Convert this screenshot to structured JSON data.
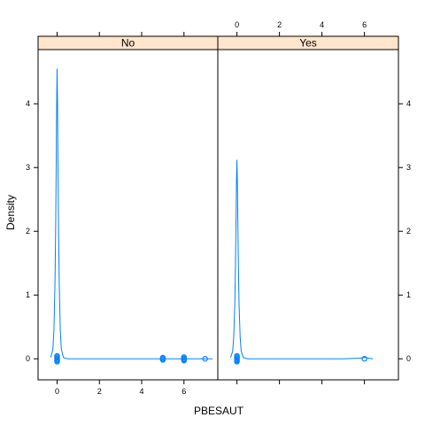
{
  "chart_data": {
    "type": "line",
    "plot_style": "lattice density plot with rug points",
    "xlabel": "PBESAUT",
    "ylabel": "Density",
    "x_ticks": [
      0,
      2,
      4,
      6
    ],
    "y_ticks": [
      0,
      1,
      2,
      3,
      4
    ],
    "xlim": [
      -0.9,
      7.6
    ],
    "ylim": [
      -0.33,
      4.85
    ],
    "colors": {
      "line": "#0080ff",
      "strip_bg": "#ffe5cc",
      "frame": "#000000"
    },
    "panels": [
      {
        "strip_label": "No",
        "x_ticks_position": "bottom",
        "density": {
          "x": [
            -0.3,
            -0.2,
            -0.15,
            -0.1,
            -0.07,
            -0.04,
            -0.02,
            0,
            0.02,
            0.04,
            0.07,
            0.1,
            0.15,
            0.2,
            0.3,
            0.5,
            1,
            2,
            3,
            4,
            5,
            6,
            7,
            7.35
          ],
          "y": [
            0.02,
            0.15,
            0.45,
            1.2,
            2.0,
            3.1,
            4.0,
            4.55,
            4.0,
            3.1,
            2.0,
            1.2,
            0.45,
            0.15,
            0.02,
            0,
            0,
            0,
            0,
            0,
            0,
            0,
            0,
            0
          ]
        },
        "rug": [
          {
            "x": 0,
            "count": 6
          },
          {
            "x": 5,
            "count": 3
          },
          {
            "x": 6,
            "count": 4
          },
          {
            "x": 7,
            "count": 1
          }
        ]
      },
      {
        "strip_label": "Yes",
        "x_ticks_position": "top",
        "density": {
          "x": [
            -0.3,
            -0.2,
            -0.15,
            -0.1,
            -0.07,
            -0.04,
            -0.02,
            0,
            0.02,
            0.04,
            0.07,
            0.1,
            0.15,
            0.2,
            0.3,
            0.5,
            1,
            2,
            3,
            4,
            5,
            5.8,
            6,
            6.2,
            6.4
          ],
          "y": [
            0.02,
            0.12,
            0.35,
            0.85,
            1.45,
            2.2,
            2.8,
            3.12,
            2.8,
            2.2,
            1.45,
            0.85,
            0.35,
            0.12,
            0.02,
            0,
            0,
            0,
            0,
            0,
            0,
            0.01,
            0.02,
            0.01,
            0
          ]
        },
        "rug": [
          {
            "x": 0,
            "count": 6
          },
          {
            "x": 6,
            "count": 1
          }
        ]
      }
    ]
  }
}
